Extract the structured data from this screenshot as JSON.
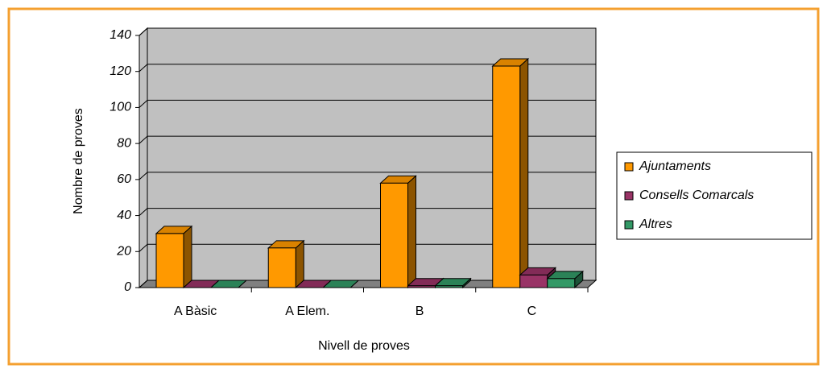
{
  "chart_data": {
    "type": "bar3d",
    "categories": [
      "A Bàsic",
      "A Elem.",
      "B",
      "C"
    ],
    "series": [
      {
        "name": "Ajuntaments",
        "color": "#ff9900",
        "values": [
          30,
          22,
          58,
          123
        ]
      },
      {
        "name": "Consells Comarcals",
        "color": "#993366",
        "values": [
          0,
          0,
          1,
          7
        ]
      },
      {
        "name": "Altres",
        "color": "#339966",
        "values": [
          0,
          0,
          1,
          5
        ]
      }
    ],
    "ylim": [
      0,
      140
    ],
    "yticks": [
      0,
      20,
      40,
      60,
      80,
      100,
      120,
      140
    ],
    "y_label": "Nombre de proves",
    "x_label": "Nivell de proves",
    "grid": true,
    "legend": "right"
  }
}
